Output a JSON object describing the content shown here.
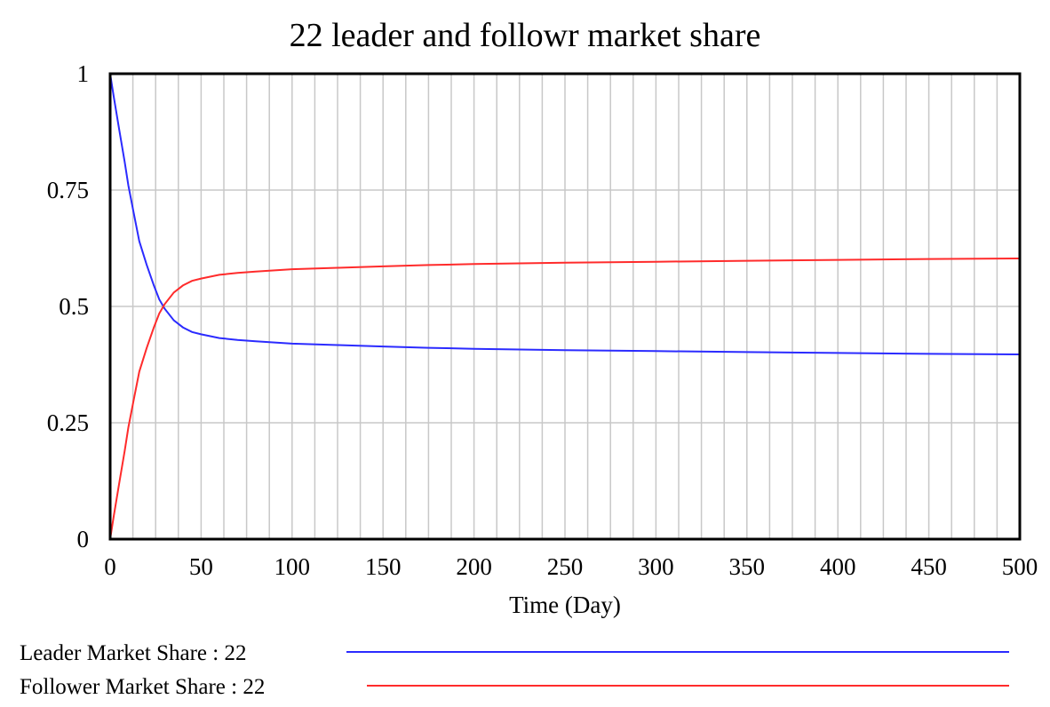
{
  "chart_data": {
    "type": "line",
    "title": "22 leader and followr market share",
    "xlabel": "Time (Day)",
    "ylabel": "",
    "xlim": [
      0,
      500
    ],
    "ylim": [
      0,
      1
    ],
    "x_ticks": [
      "0",
      "50",
      "100",
      "150",
      "200",
      "250",
      "300",
      "350",
      "400",
      "450",
      "500"
    ],
    "y_ticks": [
      "0",
      "0.25",
      "0.5",
      "0.75",
      "1"
    ],
    "x_tick_values": [
      0,
      50,
      100,
      150,
      200,
      250,
      300,
      350,
      400,
      450,
      500
    ],
    "y_tick_values": [
      0,
      0.25,
      0.5,
      0.75,
      1
    ],
    "vertical_grid_step": 12.5,
    "horizontal_grid_step": 0.25,
    "grid": true,
    "legend_position": "bottom",
    "x": [
      0,
      2,
      5,
      8,
      10,
      13,
      16,
      20,
      24,
      27,
      30,
      35,
      40,
      45,
      50,
      60,
      70,
      80,
      100,
      125,
      150,
      175,
      200,
      250,
      300,
      350,
      400,
      450,
      500
    ],
    "series": [
      {
        "name": "Leader Market Share : 22",
        "color": "#2b2bff",
        "values": [
          1.0,
          0.95,
          0.88,
          0.81,
          0.76,
          0.7,
          0.64,
          0.59,
          0.545,
          0.515,
          0.495,
          0.47,
          0.455,
          0.445,
          0.44,
          0.432,
          0.428,
          0.425,
          0.42,
          0.417,
          0.414,
          0.411,
          0.409,
          0.406,
          0.404,
          0.402,
          0.4,
          0.398,
          0.397
        ]
      },
      {
        "name": "Follower Market Share : 22",
        "color": "#ff2b2b",
        "values": [
          0.0,
          0.05,
          0.12,
          0.19,
          0.24,
          0.3,
          0.36,
          0.41,
          0.455,
          0.485,
          0.505,
          0.53,
          0.545,
          0.555,
          0.56,
          0.568,
          0.572,
          0.575,
          0.58,
          0.583,
          0.586,
          0.589,
          0.591,
          0.594,
          0.596,
          0.598,
          0.6,
          0.602,
          0.603
        ]
      }
    ]
  }
}
